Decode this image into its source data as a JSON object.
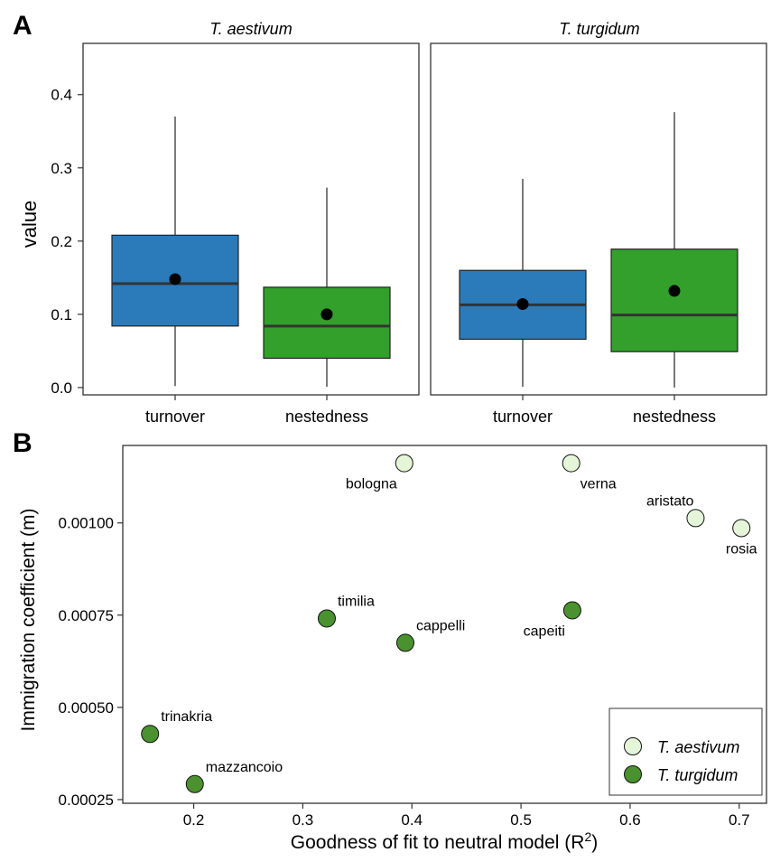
{
  "chart_data": [
    {
      "panel_label": "A",
      "type": "boxplot",
      "ylabel": "value",
      "ylim": [
        -0.01,
        0.47
      ],
      "yticks": [
        {
          "value": 0.0,
          "label": "0.0"
        },
        {
          "value": 0.1,
          "label": "0.1"
        },
        {
          "value": 0.2,
          "label": "0.2"
        },
        {
          "value": 0.3,
          "label": "0.3"
        },
        {
          "value": 0.4,
          "label": "0.4"
        }
      ],
      "facets": [
        {
          "title": "T. aestivum",
          "boxes": [
            {
              "category": "turnover",
              "color": "#2b7bba",
              "min": 0.002,
              "q1": 0.084,
              "median": 0.142,
              "q3": 0.208,
              "max": 0.37,
              "mean": 0.148
            },
            {
              "category": "nestedness",
              "color": "#33a02c",
              "min": 0.001,
              "q1": 0.04,
              "median": 0.084,
              "q3": 0.137,
              "max": 0.273,
              "mean": 0.1
            }
          ]
        },
        {
          "title": "T. turgidum",
          "boxes": [
            {
              "category": "turnover",
              "color": "#2b7bba",
              "min": 0.001,
              "q1": 0.066,
              "median": 0.113,
              "q3": 0.16,
              "max": 0.285,
              "mean": 0.114
            },
            {
              "category": "nestedness",
              "color": "#33a02c",
              "min": 0.0,
              "q1": 0.049,
              "median": 0.099,
              "q3": 0.189,
              "max": 0.376,
              "mean": 0.132
            }
          ]
        }
      ]
    },
    {
      "panel_label": "B",
      "type": "scatter",
      "xlabel": "Goodness of fit to neutral model (R",
      "xlabel_sup": "2",
      "xlabel_tail": ")",
      "ylabel": "Immigration coefficient (m)",
      "xlim": [
        0.135,
        0.725
      ],
      "ylim": [
        0.00024,
        0.00121
      ],
      "xticks": [
        {
          "value": 0.2,
          "label": "0.2"
        },
        {
          "value": 0.3,
          "label": "0.3"
        },
        {
          "value": 0.4,
          "label": "0.4"
        },
        {
          "value": 0.5,
          "label": "0.5"
        },
        {
          "value": 0.6,
          "label": "0.6"
        },
        {
          "value": 0.7,
          "label": "0.7"
        }
      ],
      "yticks": [
        {
          "value": 0.00025,
          "label": "0.00025"
        },
        {
          "value": 0.0005,
          "label": "0.00050"
        },
        {
          "value": 0.00075,
          "label": "0.00075"
        },
        {
          "value": 0.001,
          "label": "0.00100"
        }
      ],
      "series": [
        {
          "name": "T. aestivum",
          "color": "#e5f5d8",
          "points": [
            {
              "label": "bologna",
              "x": 0.393,
              "y": 0.001162,
              "anchor": "below-left"
            },
            {
              "label": "verna",
              "x": 0.546,
              "y": 0.001162,
              "anchor": "below-right"
            },
            {
              "label": "aristato",
              "x": 0.66,
              "y": 0.001013,
              "anchor": "above-left"
            },
            {
              "label": "rosia",
              "x": 0.702,
              "y": 0.000986,
              "anchor": "below"
            }
          ]
        },
        {
          "name": "T. turgidum",
          "color": "#4a9130",
          "points": [
            {
              "label": "timilia",
              "x": 0.322,
              "y": 0.000741,
              "anchor": "above-right"
            },
            {
              "label": "cappelli",
              "x": 0.394,
              "y": 0.000675,
              "anchor": "above-right"
            },
            {
              "label": "capeiti",
              "x": 0.547,
              "y": 0.000763,
              "anchor": "below-left"
            },
            {
              "label": "trinakria",
              "x": 0.16,
              "y": 0.000428,
              "anchor": "above-right"
            },
            {
              "label": "mazzancoio",
              "x": 0.201,
              "y": 0.000292,
              "anchor": "above-right"
            }
          ]
        }
      ],
      "legend_position": "bottom-right"
    }
  ]
}
